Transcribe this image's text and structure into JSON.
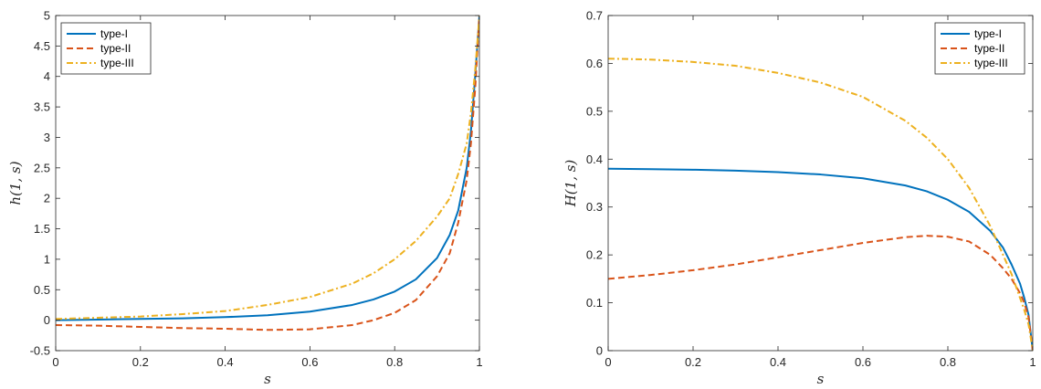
{
  "chart_data": [
    {
      "type": "line",
      "xlabel": "s",
      "ylabel": "h(1, s)",
      "xlim": [
        0,
        1
      ],
      "ylim": [
        -0.5,
        5
      ],
      "xticks": [
        "0",
        "0.2",
        "0.4",
        "0.6",
        "0.8",
        "1"
      ],
      "yticks": [
        "-0.5",
        "0",
        "0.5",
        "1",
        "1.5",
        "2",
        "2.5",
        "3",
        "3.5",
        "4",
        "4.5",
        "5"
      ],
      "legend_position": "top-left",
      "grid": false,
      "series": [
        {
          "name": "type-I",
          "color": "#0072BD",
          "style": "solid",
          "x": [
            0,
            0.1,
            0.2,
            0.3,
            0.4,
            0.5,
            0.6,
            0.7,
            0.75,
            0.8,
            0.85,
            0.9,
            0.93,
            0.95,
            0.97,
            0.98,
            0.99,
            1.0
          ],
          "y": [
            0.0,
            0.01,
            0.02,
            0.03,
            0.05,
            0.08,
            0.14,
            0.25,
            0.34,
            0.47,
            0.67,
            1.02,
            1.4,
            1.8,
            2.5,
            3.1,
            4.0,
            5.0
          ]
        },
        {
          "name": "type-II",
          "color": "#D95319",
          "style": "dashed",
          "x": [
            0,
            0.1,
            0.2,
            0.3,
            0.4,
            0.5,
            0.6,
            0.7,
            0.75,
            0.8,
            0.85,
            0.9,
            0.93,
            0.95,
            0.97,
            0.98,
            0.99,
            1.0
          ],
          "y": [
            -0.08,
            -0.09,
            -0.11,
            -0.13,
            -0.14,
            -0.16,
            -0.15,
            -0.08,
            0.0,
            0.12,
            0.33,
            0.72,
            1.1,
            1.6,
            2.3,
            2.9,
            3.8,
            5.0
          ]
        },
        {
          "name": "type-III",
          "color": "#EDB120",
          "style": "dashdot",
          "x": [
            0,
            0.1,
            0.2,
            0.3,
            0.4,
            0.5,
            0.6,
            0.7,
            0.75,
            0.8,
            0.85,
            0.9,
            0.93,
            0.95,
            0.97,
            0.98,
            0.99,
            1.0
          ],
          "y": [
            0.02,
            0.04,
            0.06,
            0.1,
            0.15,
            0.25,
            0.38,
            0.6,
            0.77,
            1.0,
            1.3,
            1.7,
            2.0,
            2.4,
            2.9,
            3.4,
            4.1,
            5.0
          ]
        }
      ]
    },
    {
      "type": "line",
      "xlabel": "s",
      "ylabel": "H(1, s)",
      "xlim": [
        0,
        1
      ],
      "ylim": [
        0,
        0.7
      ],
      "xticks": [
        "0",
        "0.2",
        "0.4",
        "0.6",
        "0.8",
        "1"
      ],
      "yticks": [
        "0",
        "0.1",
        "0.2",
        "0.3",
        "0.4",
        "0.5",
        "0.6",
        "0.7"
      ],
      "legend_position": "top-right",
      "grid": false,
      "series": [
        {
          "name": "type-I",
          "color": "#0072BD",
          "style": "solid",
          "x": [
            0,
            0.1,
            0.2,
            0.3,
            0.4,
            0.5,
            0.6,
            0.7,
            0.75,
            0.8,
            0.85,
            0.9,
            0.93,
            0.95,
            0.97,
            0.98,
            0.99,
            1.0
          ],
          "y": [
            0.38,
            0.379,
            0.378,
            0.376,
            0.373,
            0.368,
            0.36,
            0.345,
            0.333,
            0.315,
            0.29,
            0.25,
            0.215,
            0.18,
            0.14,
            0.11,
            0.075,
            0.0
          ]
        },
        {
          "name": "type-II",
          "color": "#D95319",
          "style": "dashed",
          "x": [
            0,
            0.1,
            0.2,
            0.3,
            0.4,
            0.5,
            0.6,
            0.7,
            0.75,
            0.8,
            0.85,
            0.9,
            0.93,
            0.95,
            0.97,
            0.98,
            0.99,
            1.0
          ],
          "y": [
            0.15,
            0.158,
            0.168,
            0.18,
            0.195,
            0.21,
            0.225,
            0.237,
            0.24,
            0.238,
            0.228,
            0.2,
            0.172,
            0.15,
            0.12,
            0.1,
            0.07,
            0.0
          ]
        },
        {
          "name": "type-III",
          "color": "#EDB120",
          "style": "dashdot",
          "x": [
            0,
            0.1,
            0.2,
            0.3,
            0.4,
            0.5,
            0.6,
            0.7,
            0.75,
            0.8,
            0.85,
            0.9,
            0.93,
            0.95,
            0.97,
            0.98,
            0.99,
            1.0
          ],
          "y": [
            0.61,
            0.608,
            0.603,
            0.595,
            0.58,
            0.56,
            0.53,
            0.48,
            0.445,
            0.4,
            0.34,
            0.26,
            0.2,
            0.16,
            0.11,
            0.085,
            0.055,
            0.0
          ]
        }
      ]
    }
  ]
}
